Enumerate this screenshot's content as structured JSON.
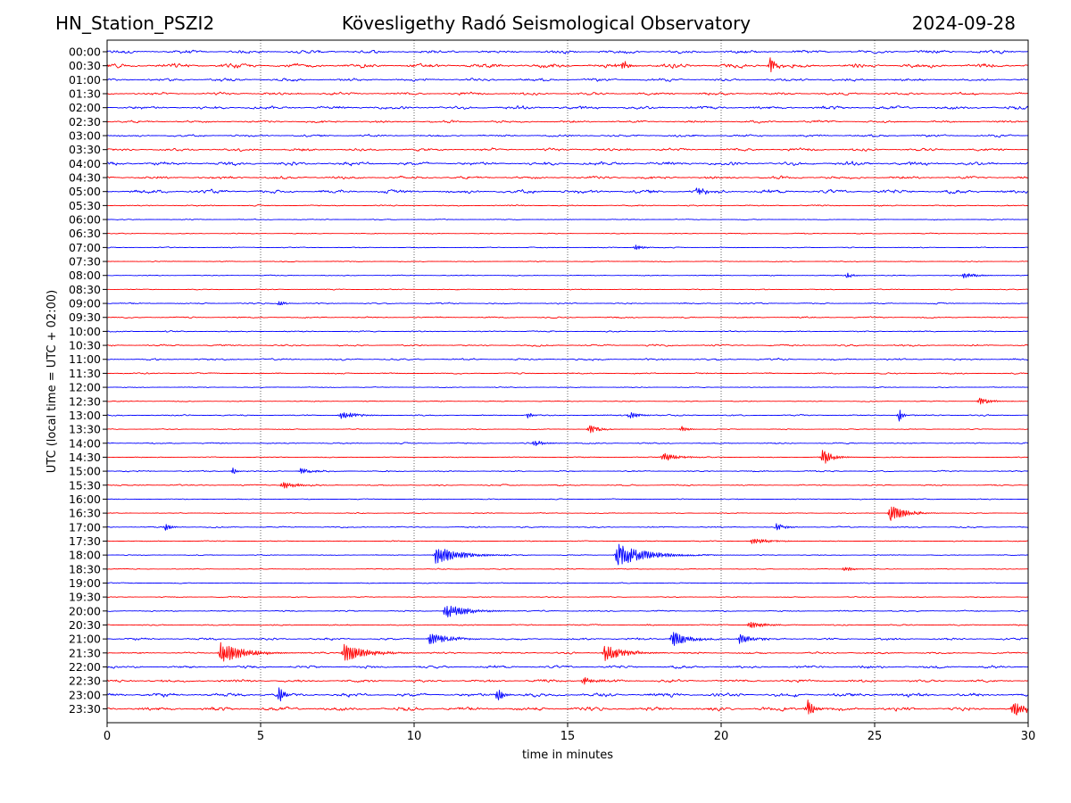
{
  "header": {
    "station": "HN_Station_PSZI2",
    "title": "Kövesligethy Radó Seismological Observatory",
    "date": "2024-09-28"
  },
  "chart_data": {
    "type": "line",
    "title": "Kövesligethy Radó Seismological Observatory",
    "xlabel": "time in minutes",
    "ylabel": "UTC (local time = UTC + 02:00)",
    "xlim": [
      0,
      30
    ],
    "xticks": [
      0,
      5,
      10,
      15,
      20,
      25,
      30
    ],
    "grid": "vertical dotted at 5-minute ticks",
    "colors": [
      "#0000ff",
      "#ff0000"
    ],
    "rows": [
      "00:00",
      "00:30",
      "01:00",
      "01:30",
      "02:00",
      "02:30",
      "03:00",
      "03:30",
      "04:00",
      "04:30",
      "05:00",
      "05:30",
      "06:00",
      "06:30",
      "07:00",
      "07:30",
      "08:00",
      "08:30",
      "09:00",
      "09:30",
      "10:00",
      "10:30",
      "11:00",
      "11:30",
      "12:00",
      "12:30",
      "13:00",
      "13:30",
      "14:00",
      "14:30",
      "15:00",
      "15:30",
      "16:00",
      "16:30",
      "17:00",
      "17:30",
      "18:00",
      "18:30",
      "19:00",
      "19:30",
      "20:00",
      "20:30",
      "21:00",
      "21:30",
      "22:00",
      "22:30",
      "23:00",
      "23:30"
    ],
    "noise_level": [
      3.5,
      4.5,
      3,
      3,
      3.5,
      2.5,
      2.5,
      3,
      4,
      3,
      4,
      1.5,
      1,
      1,
      1,
      1,
      1,
      1,
      1.5,
      1.5,
      1.5,
      2,
      2,
      1.5,
      1,
      1,
      1.5,
      1,
      1.5,
      1,
      1.5,
      1.5,
      1,
      1,
      1.5,
      1,
      1,
      1,
      1,
      1,
      1.5,
      1.5,
      2.5,
      2,
      3,
      3,
      4,
      4
    ],
    "events": [
      {
        "row": "00:30",
        "minute": 21.6,
        "amp": 9,
        "dur": 0.3
      },
      {
        "row": "00:30",
        "minute": 16.8,
        "amp": 6,
        "dur": 0.3
      },
      {
        "row": "05:00",
        "minute": 19.2,
        "amp": 5,
        "dur": 0.4
      },
      {
        "row": "07:00",
        "minute": 17.2,
        "amp": 3,
        "dur": 0.4
      },
      {
        "row": "08:00",
        "minute": 24.1,
        "amp": 4,
        "dur": 0.3
      },
      {
        "row": "08:00",
        "minute": 27.9,
        "amp": 3,
        "dur": 0.7
      },
      {
        "row": "09:00",
        "minute": 5.6,
        "amp": 4,
        "dur": 0.3
      },
      {
        "row": "12:30",
        "minute": 28.4,
        "amp": 4,
        "dur": 0.6
      },
      {
        "row": "13:00",
        "minute": 7.6,
        "amp": 4,
        "dur": 0.8
      },
      {
        "row": "13:00",
        "minute": 13.7,
        "amp": 3,
        "dur": 0.3
      },
      {
        "row": "13:00",
        "minute": 17.0,
        "amp": 4,
        "dur": 0.5
      },
      {
        "row": "13:00",
        "minute": 25.8,
        "amp": 7,
        "dur": 0.2
      },
      {
        "row": "13:30",
        "minute": 15.7,
        "amp": 5,
        "dur": 0.5
      },
      {
        "row": "13:30",
        "minute": 18.7,
        "amp": 4,
        "dur": 0.3
      },
      {
        "row": "14:00",
        "minute": 13.9,
        "amp": 4,
        "dur": 0.5
      },
      {
        "row": "14:30",
        "minute": 18.1,
        "amp": 5,
        "dur": 0.8
      },
      {
        "row": "14:30",
        "minute": 23.3,
        "amp": 9,
        "dur": 0.5
      },
      {
        "row": "15:00",
        "minute": 4.1,
        "amp": 4,
        "dur": 0.2
      },
      {
        "row": "15:00",
        "minute": 6.3,
        "amp": 3,
        "dur": 0.7
      },
      {
        "row": "15:30",
        "minute": 5.7,
        "amp": 4,
        "dur": 0.8
      },
      {
        "row": "16:30",
        "minute": 25.5,
        "amp": 9,
        "dur": 0.8
      },
      {
        "row": "17:00",
        "minute": 1.9,
        "amp": 4,
        "dur": 0.3
      },
      {
        "row": "17:00",
        "minute": 21.8,
        "amp": 4,
        "dur": 0.4
      },
      {
        "row": "17:30",
        "minute": 21.0,
        "amp": 3,
        "dur": 1.0
      },
      {
        "row": "18:00",
        "minute": 10.7,
        "amp": 10,
        "dur": 1.2
      },
      {
        "row": "18:00",
        "minute": 16.6,
        "amp": 13,
        "dur": 1.4
      },
      {
        "row": "18:30",
        "minute": 24.0,
        "amp": 3,
        "dur": 0.5
      },
      {
        "row": "20:00",
        "minute": 11.0,
        "amp": 8,
        "dur": 1.1
      },
      {
        "row": "20:30",
        "minute": 20.9,
        "amp": 4,
        "dur": 0.8
      },
      {
        "row": "21:00",
        "minute": 10.5,
        "amp": 6,
        "dur": 1.0
      },
      {
        "row": "21:00",
        "minute": 18.4,
        "amp": 9,
        "dur": 0.8
      },
      {
        "row": "21:00",
        "minute": 20.6,
        "amp": 5,
        "dur": 0.7
      },
      {
        "row": "21:30",
        "minute": 3.7,
        "amp": 12,
        "dur": 1.1
      },
      {
        "row": "21:30",
        "minute": 7.7,
        "amp": 10,
        "dur": 1.1
      },
      {
        "row": "21:30",
        "minute": 16.2,
        "amp": 9,
        "dur": 1.0
      },
      {
        "row": "22:30",
        "minute": 15.5,
        "amp": 5,
        "dur": 0.5
      },
      {
        "row": "23:00",
        "minute": 5.6,
        "amp": 10,
        "dur": 0.2
      },
      {
        "row": "23:00",
        "minute": 12.7,
        "amp": 8,
        "dur": 0.3
      },
      {
        "row": "23:30",
        "minute": 22.8,
        "amp": 12,
        "dur": 0.3
      },
      {
        "row": "23:30",
        "minute": 29.5,
        "amp": 8,
        "dur": 0.6
      }
    ]
  }
}
